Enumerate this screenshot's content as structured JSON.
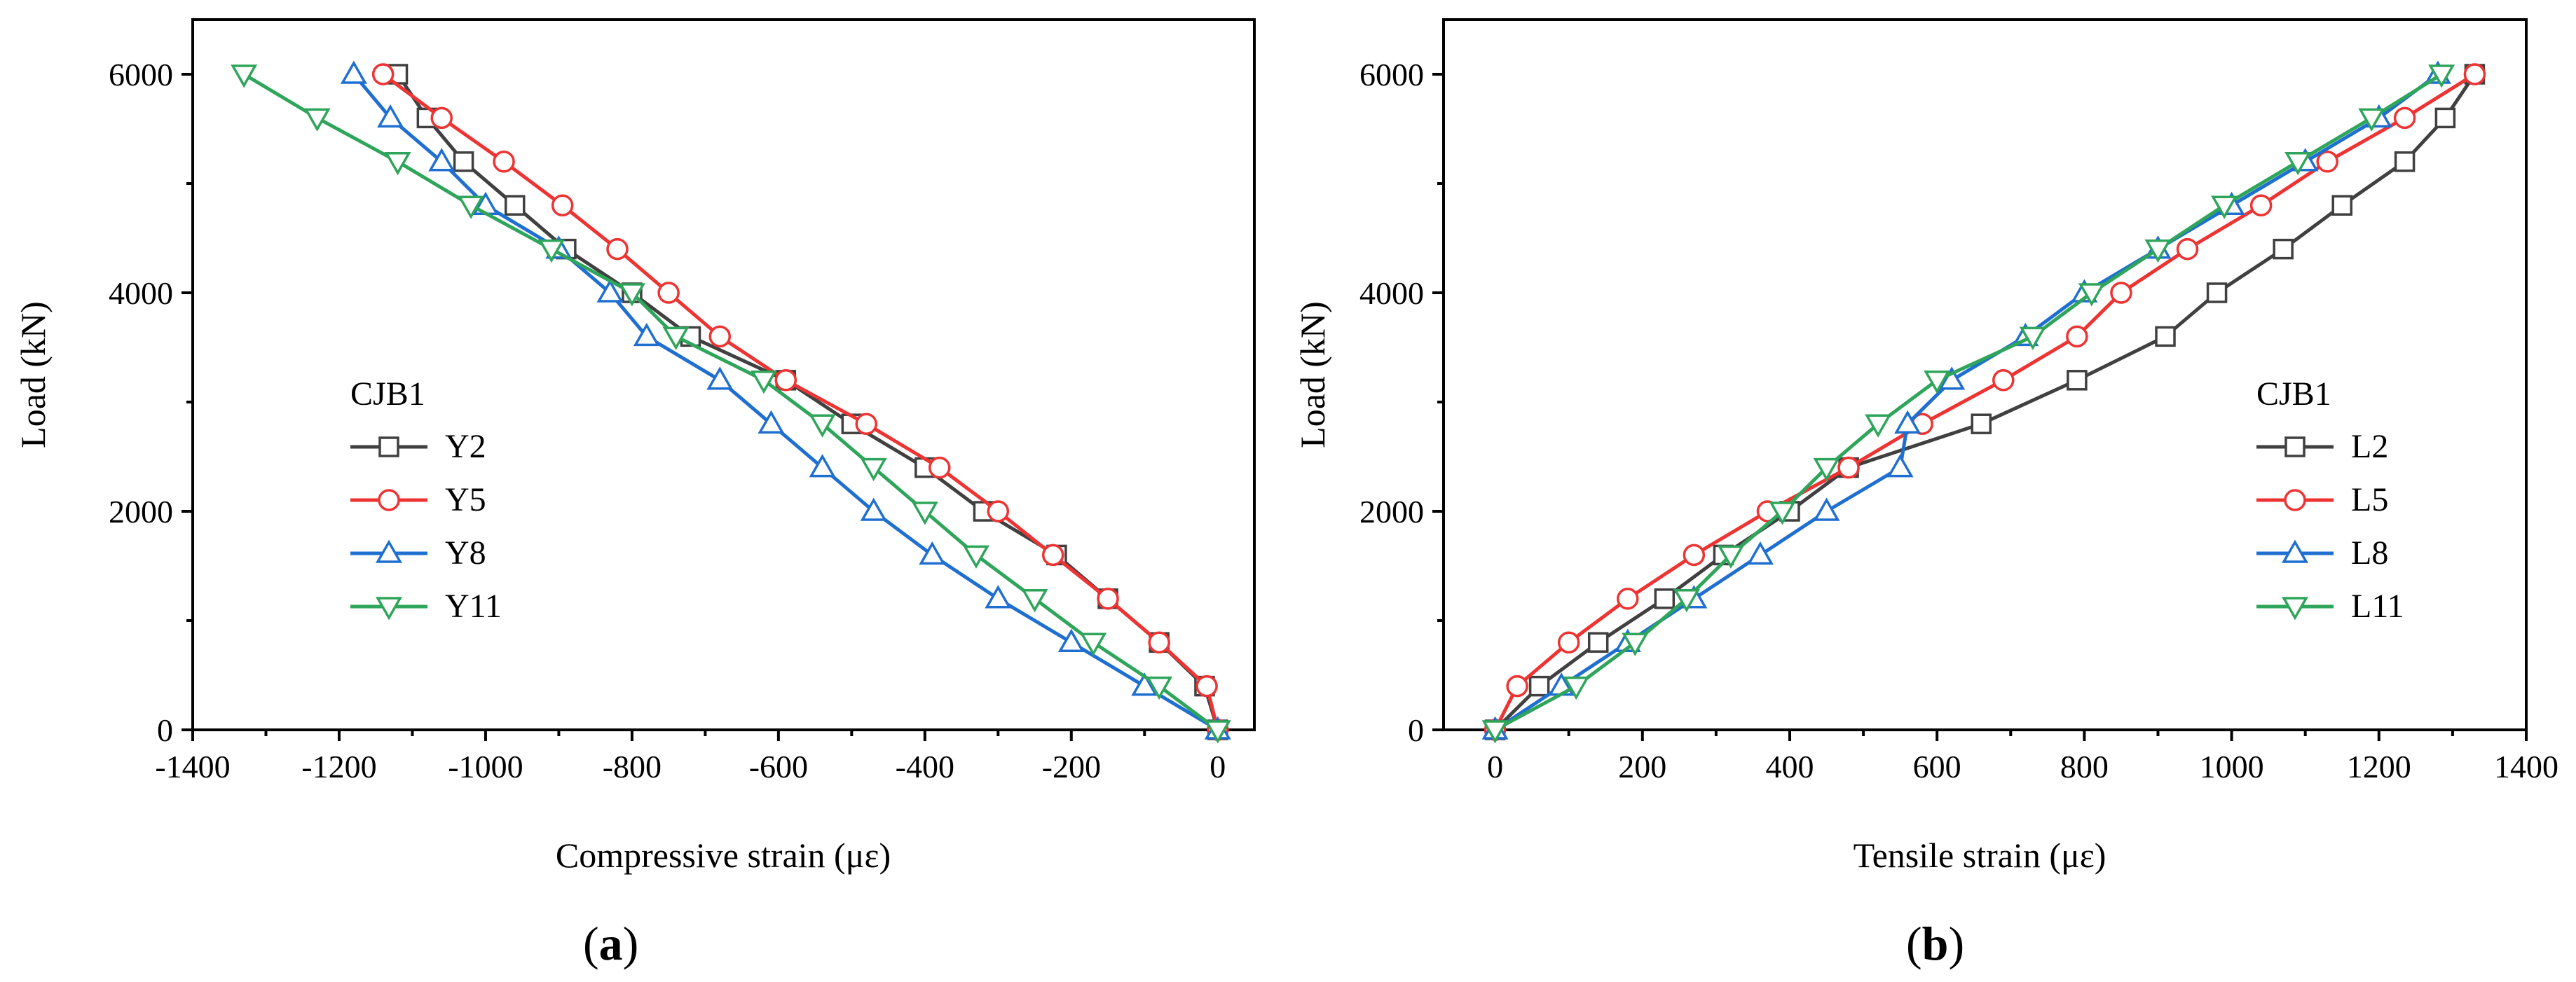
{
  "chart_data": [
    {
      "type": "line",
      "panel_label": "a",
      "xlabel": "Compressive strain (με)",
      "ylabel": "Load (kN)",
      "xlim": [
        -1400,
        50
      ],
      "ylim": [
        0,
        6500
      ],
      "xticks": [
        -1400,
        -1200,
        -1000,
        -800,
        -600,
        -400,
        -200,
        0
      ],
      "xtick_labels": [
        "-1400",
        "-1200",
        "-1000",
        "-800",
        "-600",
        "-400",
        "-200",
        "0"
      ],
      "yticks": [
        0,
        2000,
        4000,
        6000
      ],
      "ytick_labels": [
        "0",
        "2000",
        "4000",
        "6000"
      ],
      "legend_title": "CJB1",
      "legend_position": "center-left",
      "series": [
        {
          "name": "Y2",
          "color": "#404040",
          "marker": "square",
          "x": [
            0,
            -18,
            -80,
            -150,
            -220,
            -320,
            -400,
            -500,
            -590,
            -720,
            -800,
            -890,
            -960,
            -1030,
            -1080,
            -1120
          ],
          "y": [
            0,
            400,
            800,
            1200,
            1600,
            2000,
            2400,
            2800,
            3200,
            3600,
            4000,
            4400,
            4800,
            5200,
            5600,
            6000
          ]
        },
        {
          "name": "Y5",
          "color": "#ee3333",
          "marker": "circle",
          "x": [
            0,
            -15,
            -80,
            -150,
            -225,
            -300,
            -380,
            -480,
            -590,
            -680,
            -750,
            -820,
            -895,
            -975,
            -1060,
            -1140
          ],
          "y": [
            0,
            400,
            800,
            1200,
            1600,
            2000,
            2400,
            2800,
            3200,
            3600,
            4000,
            4400,
            4800,
            5200,
            5600,
            6000
          ]
        },
        {
          "name": "Y8",
          "color": "#1f6fd1",
          "marker": "triangle-up",
          "x": [
            0,
            -100,
            -200,
            -300,
            -390,
            -470,
            -540,
            -610,
            -680,
            -780,
            -830,
            -900,
            -1000,
            -1060,
            -1130,
            -1180
          ],
          "y": [
            0,
            400,
            800,
            1200,
            1600,
            2000,
            2400,
            2800,
            3200,
            3600,
            4000,
            4400,
            4800,
            5200,
            5600,
            6000
          ]
        },
        {
          "name": "Y11",
          "color": "#2ea55a",
          "marker": "triangle-down",
          "x": [
            0,
            -80,
            -170,
            -250,
            -330,
            -400,
            -470,
            -540,
            -620,
            -740,
            -800,
            -910,
            -1020,
            -1120,
            -1230,
            -1330
          ],
          "y": [
            0,
            400,
            800,
            1200,
            1600,
            2000,
            2400,
            2800,
            3200,
            3600,
            4000,
            4400,
            4800,
            5200,
            5600,
            6000
          ]
        }
      ]
    },
    {
      "type": "line",
      "panel_label": "b",
      "xlabel": "Tensile strain (με)",
      "ylabel": "Load (kN)",
      "xlim": [
        -70,
        1400
      ],
      "ylim": [
        0,
        6500
      ],
      "xticks": [
        0,
        200,
        400,
        600,
        800,
        1000,
        1200,
        1400
      ],
      "xtick_labels": [
        "0",
        "200",
        "400",
        "600",
        "800",
        "1000",
        "1200",
        "1400"
      ],
      "yticks": [
        0,
        2000,
        4000,
        6000
      ],
      "ytick_labels": [
        "0",
        "2000",
        "4000",
        "6000"
      ],
      "legend_title": "CJB1",
      "legend_position": "center-right",
      "series": [
        {
          "name": "L2",
          "color": "#404040",
          "marker": "square",
          "x": [
            0,
            60,
            140,
            230,
            310,
            400,
            480,
            660,
            790,
            910,
            980,
            1070,
            1150,
            1235,
            1290,
            1330
          ],
          "y": [
            0,
            400,
            800,
            1200,
            1600,
            2000,
            2400,
            2800,
            3200,
            3600,
            4000,
            4400,
            4800,
            5200,
            5600,
            6000
          ]
        },
        {
          "name": "L5",
          "color": "#ee3333",
          "marker": "circle",
          "x": [
            0,
            30,
            100,
            180,
            270,
            370,
            480,
            580,
            690,
            790,
            850,
            940,
            1040,
            1130,
            1235,
            1330
          ],
          "y": [
            0,
            400,
            800,
            1200,
            1600,
            2000,
            2400,
            2800,
            3200,
            3600,
            4000,
            4400,
            4800,
            5200,
            5600,
            6000
          ]
        },
        {
          "name": "L8",
          "color": "#1f6fd1",
          "marker": "triangle-up",
          "x": [
            0,
            90,
            180,
            270,
            360,
            450,
            550,
            560,
            620,
            720,
            800,
            900,
            1000,
            1100,
            1200,
            1280
          ],
          "y": [
            0,
            400,
            800,
            1200,
            1600,
            2000,
            2400,
            2800,
            3200,
            3600,
            4000,
            4400,
            4800,
            5200,
            5600,
            6000
          ]
        },
        {
          "name": "L11",
          "color": "#2ea55a",
          "marker": "triangle-down",
          "x": [
            0,
            110,
            190,
            260,
            320,
            390,
            450,
            520,
            600,
            730,
            810,
            900,
            990,
            1090,
            1190,
            1285
          ],
          "y": [
            0,
            400,
            800,
            1200,
            1600,
            2000,
            2400,
            2800,
            3200,
            3600,
            4000,
            4400,
            4800,
            5200,
            5600,
            6000
          ]
        }
      ]
    }
  ]
}
